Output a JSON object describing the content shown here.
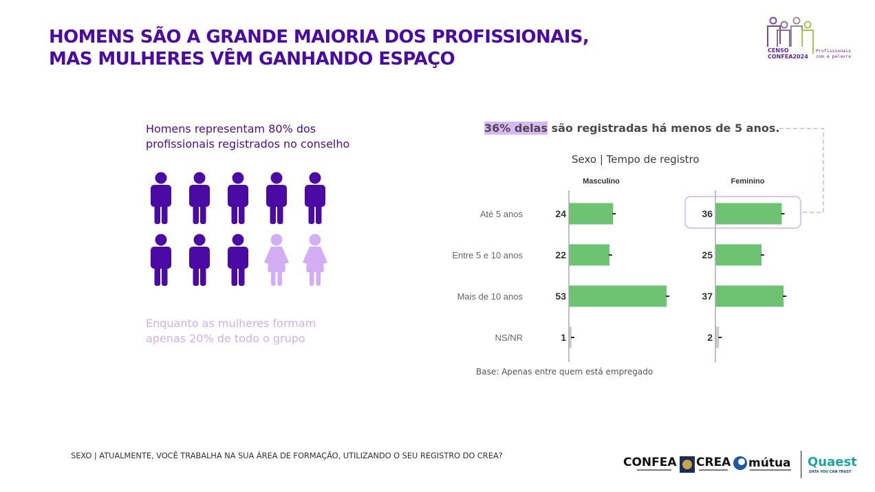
{
  "title": {
    "line1": "HOMENS SÃO A GRANDE MAIORIA DOS PROFISSIONAIS,",
    "line2": "MAS MULHERES VÊM GANHANDO ESPAÇO"
  },
  "logo": {
    "censo": "CENSO",
    "confea2024": "CONFEA2024",
    "tagline1": "Profissionais",
    "tagline2": "com a palavra"
  },
  "left_panel": {
    "men_line1": "Homens representam 80% dos",
    "men_line2": "profissionais registrados no conselho",
    "women_line1": "Enquanto as mulheres formam",
    "women_line2": "apenas 20% de todo o grupo",
    "pictogram": {
      "total": 10,
      "men": 8,
      "women": 2,
      "men_color": "#4b0aa3",
      "women_color": "#d3aef5"
    }
  },
  "headline": {
    "highlight": "36% delas",
    "rest": " são registradas há menos de 5 anos."
  },
  "chart_data": {
    "type": "bar",
    "orientation": "horizontal",
    "title": "Sexo | Tempo de registro",
    "categories": [
      "Até 5 anos",
      "Entre 5 e 10 anos",
      "Mais de 10 anos",
      "NS/NR"
    ],
    "series": [
      {
        "name": "Masculino",
        "values": [
          24,
          22,
          53,
          1
        ]
      },
      {
        "name": "Feminino",
        "values": [
          36,
          25,
          37,
          2
        ]
      }
    ],
    "unit": "%",
    "highlighted": {
      "series": "Feminino",
      "category": "Até 5 anos"
    },
    "bar_color": "#6cc271",
    "nsnr_color": "#cccccc",
    "note": "Base: Apenas entre quem está empregado"
  },
  "footer": {
    "question": "SEXO | ATUALMENTE, VOCÊ TRABALHA NA SUA ÁREA DE FORMAÇÃO, UTILIZANDO O SEU REGISTRO DO CREA?"
  },
  "partners": {
    "confea": "CONFEA",
    "crea": "CREA",
    "mutua": "mútua",
    "quaest": "Quaest",
    "quaest_tagline": "DATA YOU CAN TRUST"
  }
}
